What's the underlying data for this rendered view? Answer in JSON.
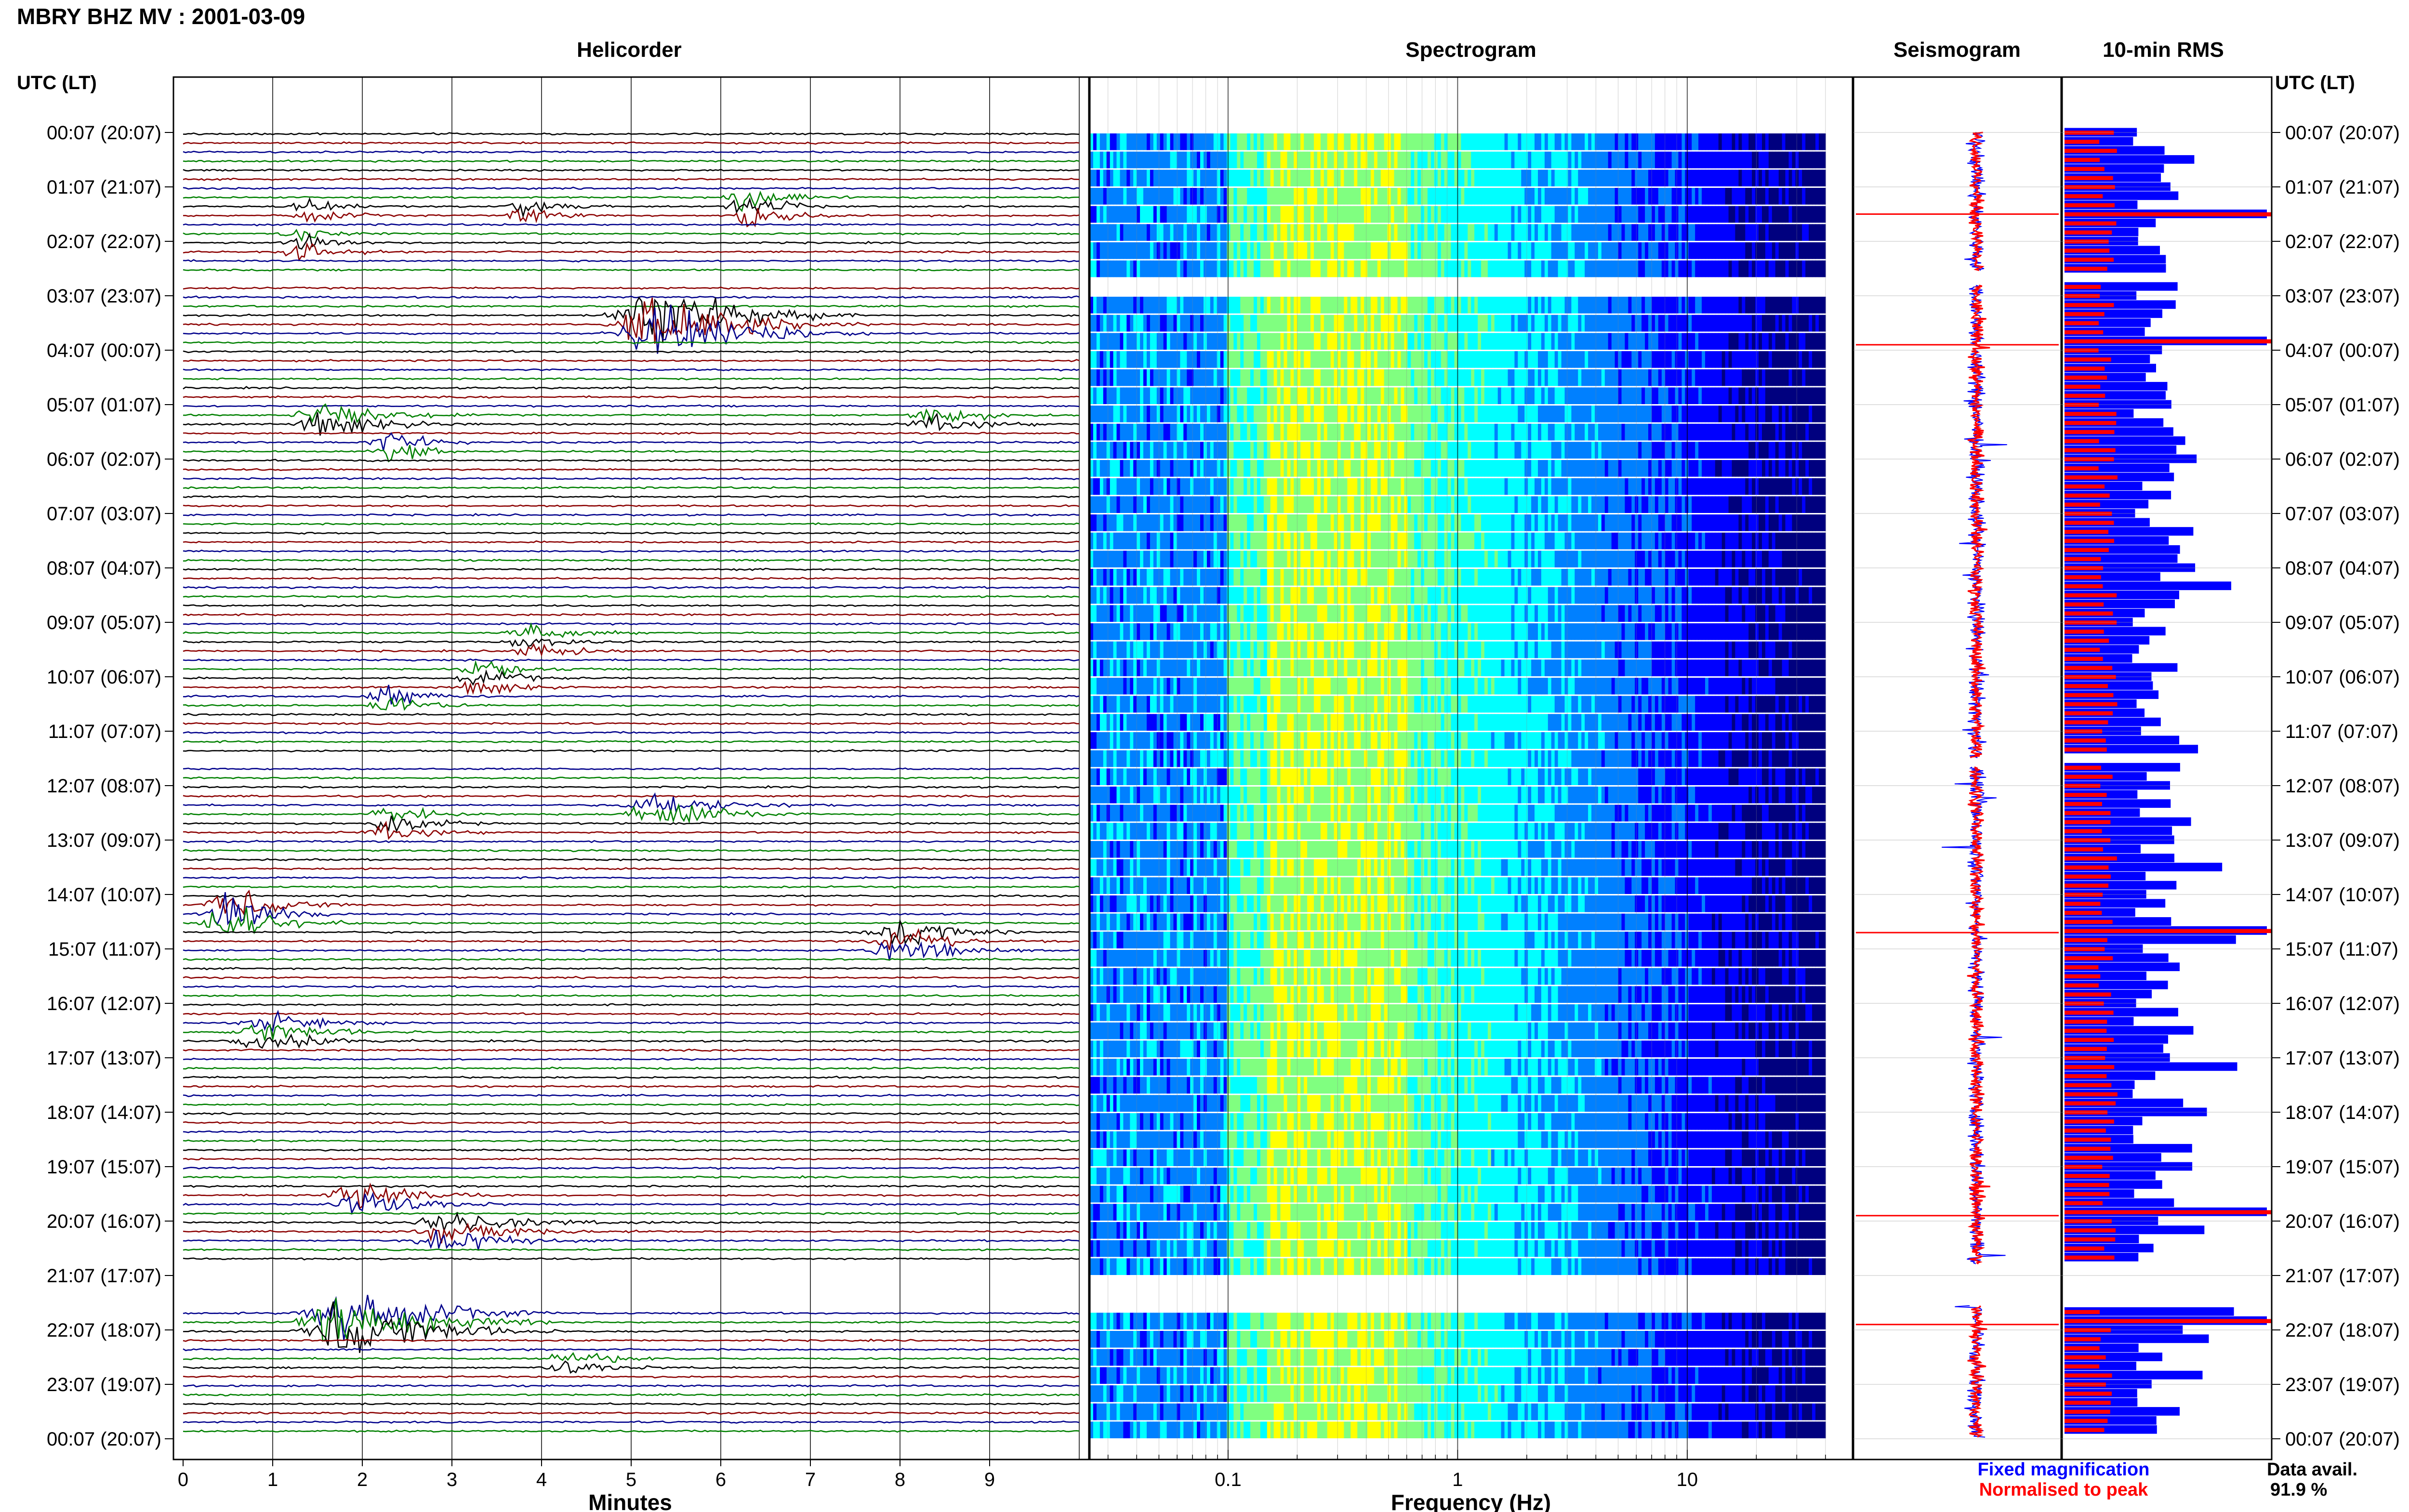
{
  "header": {
    "title": "MBRY BHZ MV : 2001-03-09",
    "utc_label": "UTC (LT)"
  },
  "panels": {
    "helicorder": "Helicorder",
    "spectrogram": "Spectrogram",
    "seismogram": "Seismogram",
    "rms": "10-min RMS"
  },
  "footer": {
    "fixed_magnification": "Fixed magnification",
    "normalised_to_peak": "Normalised to peak",
    "data_avail_label": "Data avail.",
    "data_avail_value": "91.9 %",
    "fixed_color": "#0000ff",
    "normalised_color": "#ff0000"
  },
  "chart_data": [
    {
      "type": "line",
      "panel": "helicorder",
      "xlabel": "Minutes",
      "x_ticks": [
        "0",
        "1",
        "2",
        "3",
        "4",
        "5",
        "6",
        "7",
        "8",
        "9"
      ],
      "xlim": [
        0,
        10
      ],
      "row_interval_minutes": 10,
      "row_labels": [
        "00:07 (20:07)",
        "01:07 (21:07)",
        "02:07 (22:07)",
        "03:07 (23:07)",
        "04:07 (00:07)",
        "05:07 (01:07)",
        "06:07 (02:07)",
        "07:07 (03:07)",
        "08:07 (04:07)",
        "09:07 (05:07)",
        "10:07 (06:07)",
        "11:07 (07:07)",
        "12:07 (08:07)",
        "13:07 (09:07)",
        "14:07 (10:07)",
        "15:07 (11:07)",
        "16:07 (12:07)",
        "17:07 (13:07)",
        "18:07 (14:07)",
        "19:07 (15:07)",
        "20:07 (16:07)",
        "21:07 (17:07)",
        "22:07 (18:07)",
        "23:07 (19:07)",
        "00:07 (20:07)"
      ],
      "trace_colors": [
        "#000000",
        "#8b0000",
        "#00008b",
        "#008000"
      ],
      "gaps_hours": [
        [
          2.55,
          2.8
        ],
        [
          11.5,
          11.65
        ],
        [
          20.8,
          21.55
        ]
      ],
      "events": [
        {
          "row": 1.3,
          "minute": 6.3,
          "amp": 4,
          "width": 0.8
        },
        {
          "row": 1.4,
          "minute": 3.8,
          "amp": 3,
          "width": 0.7
        },
        {
          "row": 1.4,
          "minute": 1.4,
          "amp": 2,
          "width": 0.9
        },
        {
          "row": 2.0,
          "minute": 1.3,
          "amp": 3,
          "width": 0.7
        },
        {
          "row": 3.5,
          "minute": 5.3,
          "amp": 9,
          "width": 1.6
        },
        {
          "row": 5.2,
          "minute": 1.6,
          "amp": 4,
          "width": 1.2
        },
        {
          "row": 5.3,
          "minute": 8.4,
          "amp": 3,
          "width": 1.0
        },
        {
          "row": 5.8,
          "minute": 2.3,
          "amp": 4,
          "width": 0.7
        },
        {
          "row": 9.3,
          "minute": 3.9,
          "amp": 2.5,
          "width": 1.0
        },
        {
          "row": 10.0,
          "minute": 3.3,
          "amp": 3,
          "width": 0.8
        },
        {
          "row": 10.4,
          "minute": 2.3,
          "amp": 3,
          "width": 0.9
        },
        {
          "row": 12.4,
          "minute": 5.3,
          "amp": 4,
          "width": 1.3
        },
        {
          "row": 12.7,
          "minute": 2.3,
          "amp": 3,
          "width": 0.9
        },
        {
          "row": 14.3,
          "minute": 0.5,
          "amp": 6,
          "width": 1.0
        },
        {
          "row": 14.8,
          "minute": 8.0,
          "amp": 4,
          "width": 1.2
        },
        {
          "row": 16.5,
          "minute": 0.9,
          "amp": 3,
          "width": 1.3
        },
        {
          "row": 19.6,
          "minute": 2.0,
          "amp": 5,
          "width": 1.2
        },
        {
          "row": 20.2,
          "minute": 3.0,
          "amp": 3,
          "width": 1.6
        },
        {
          "row": 21.8,
          "minute": 1.8,
          "amp": 9,
          "width": 1.6
        },
        {
          "row": 22.6,
          "minute": 4.3,
          "amp": 2.5,
          "width": 1.0
        }
      ]
    },
    {
      "type": "heatmap",
      "panel": "spectrogram",
      "xlabel": "Frequency (Hz)",
      "x_scale": "log",
      "xlim": [
        0.025,
        50
      ],
      "x_ticks": [
        0.1,
        1,
        10
      ],
      "x_tick_labels": [
        "0.1",
        "1",
        "10"
      ],
      "colormap": [
        "#00007f",
        "#0000ff",
        "#0080ff",
        "#00ffff",
        "#80ff80",
        "#ffff00",
        "#ff8000"
      ],
      "data_cutoff_hz": 40,
      "band_peak_hz": [
        0.15,
        0.6
      ]
    },
    {
      "type": "line",
      "panel": "seismogram",
      "series": [
        {
          "name": "Fixed magnification",
          "color": "#0000ff"
        },
        {
          "name": "Normalised to peak",
          "color": "#ff0000"
        }
      ]
    },
    {
      "type": "bar",
      "panel": "rms",
      "orientation": "horizontal",
      "series": [
        {
          "name": "Fixed magnification",
          "color": "#0000ff"
        },
        {
          "name": "Normalised to peak",
          "color": "#ff0000"
        }
      ],
      "highlight_peaks_hours": [
        1.5,
        3.9,
        14.7,
        19.9,
        21.9
      ]
    }
  ]
}
